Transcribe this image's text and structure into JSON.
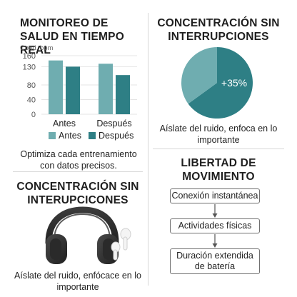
{
  "panels": {
    "health": {
      "title": "MONITOREO DE SALUD EN TIEMPO REAL",
      "caption": "Optimiza cada entrenamiento con datos precisos."
    },
    "focus": {
      "title": "CONCENTRACIÓN SIN INTERRUPCIONES",
      "caption": "Aíslate del ruido, enfoca en lo importante"
    },
    "focus_product": {
      "title": "CONCENTRACIÓN SIN INTERUPCICONES",
      "caption": "Aíslate del ruido, enfócace en lo importante"
    },
    "freedom": {
      "title": "LIBERTAD DE MOVIMIENTO",
      "steps": [
        "Conexión instantánea",
        "Actividades físicas",
        "Duración extendida de batería"
      ]
    }
  },
  "chart_data": [
    {
      "type": "bar",
      "ylabel": "Cond. bpm",
      "yticks": [
        0,
        40,
        80,
        130,
        160
      ],
      "ylim": [
        0,
        160
      ],
      "categories": [
        "Antes",
        "Después"
      ],
      "series": [
        {
          "name": "Antes",
          "values": [
            147,
            138
          ],
          "color": "#6fadb0"
        },
        {
          "name": "Después",
          "values": [
            130,
            107
          ],
          "color": "#2e7f85"
        }
      ],
      "legend": "bottom"
    },
    {
      "type": "pie",
      "slices": [
        {
          "value": 65,
          "color": "#2e7f85"
        },
        {
          "value": 35,
          "color": "#6fadb0"
        }
      ],
      "label": "+35%"
    }
  ],
  "colors": {
    "teal_dark": "#2e7f85",
    "teal_light": "#6fadb0",
    "text": "#1e1e1e",
    "divider": "#d8d8d8"
  },
  "icons": {
    "product": "headphones-and-earbuds-icon",
    "arrow": "arrow-down-icon"
  }
}
